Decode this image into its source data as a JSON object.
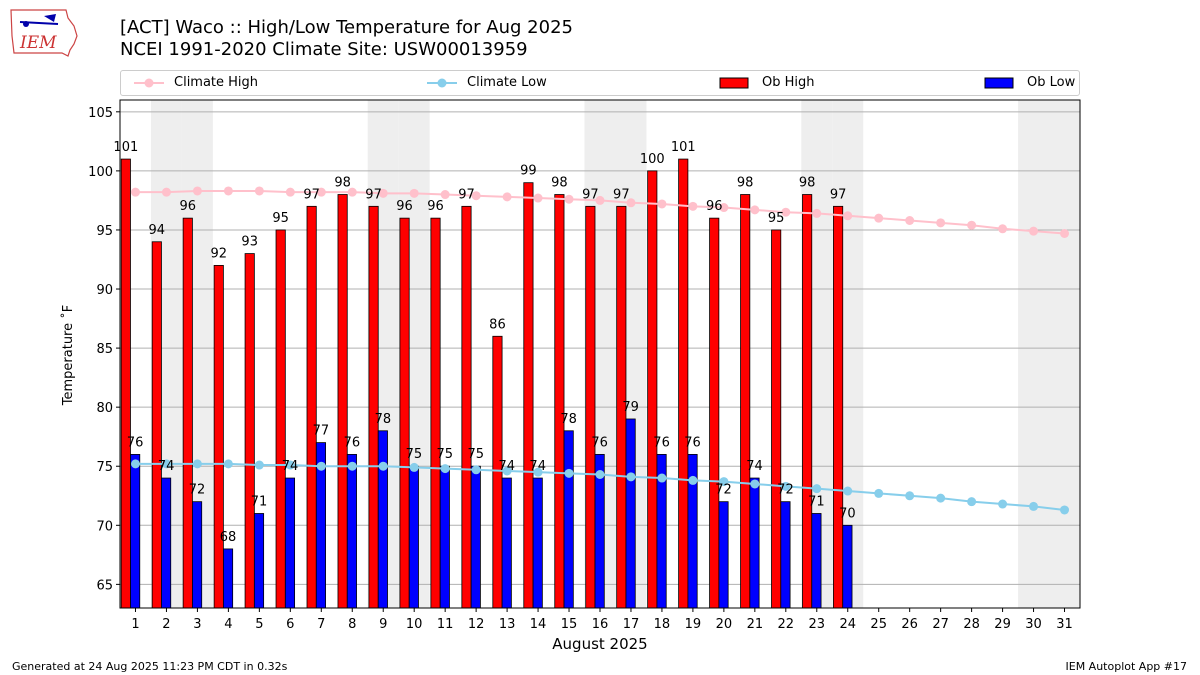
{
  "header": {
    "title_line1": "[ACT] Waco :: High/Low Temperature for Aug 2025",
    "title_line2": "NCEI 1991-2020 Climate Site: USW00013959",
    "logo_text": "IEM"
  },
  "legend": {
    "items": [
      {
        "label": "Climate High",
        "kind": "line",
        "color": "#ffc0cb"
      },
      {
        "label": "Climate Low",
        "kind": "line",
        "color": "#87ceeb"
      },
      {
        "label": "Ob High",
        "kind": "bar",
        "color": "#ff0000"
      },
      {
        "label": "Ob Low",
        "kind": "bar",
        "color": "#0000ff"
      }
    ]
  },
  "footer": {
    "left": "Generated at 24 Aug 2025 11:23 PM CDT in 0.32s",
    "right": "IEM Autoplot App #17"
  },
  "chart_data": {
    "type": "bar",
    "xlabel": "August 2025",
    "ylabel": "Temperature ˚F",
    "ylim": [
      63,
      106
    ],
    "yticks": [
      65,
      70,
      75,
      80,
      85,
      90,
      95,
      100,
      105
    ],
    "grid": true,
    "legend_position": "top",
    "categories": [
      "1",
      "2",
      "3",
      "4",
      "5",
      "6",
      "7",
      "8",
      "9",
      "10",
      "11",
      "12",
      "13",
      "14",
      "15",
      "16",
      "17",
      "18",
      "19",
      "20",
      "21",
      "22",
      "23",
      "24",
      "25",
      "26",
      "27",
      "28",
      "29",
      "30",
      "31"
    ],
    "weekend_shading_days": [
      2,
      3,
      9,
      10,
      16,
      17,
      23,
      24,
      30,
      31
    ],
    "series": [
      {
        "name": "Ob High",
        "kind": "bar",
        "color": "#ff0000",
        "values": [
          101,
          94,
          96,
          92,
          93,
          95,
          97,
          98,
          97,
          96,
          96,
          97,
          86,
          99,
          98,
          97,
          97,
          100,
          101,
          96,
          98,
          95,
          98,
          97,
          null,
          null,
          null,
          null,
          null,
          null,
          null
        ]
      },
      {
        "name": "Ob Low",
        "kind": "bar",
        "color": "#0000ff",
        "values": [
          76,
          74,
          72,
          68,
          71,
          74,
          77,
          76,
          78,
          75,
          75,
          75,
          74,
          74,
          78,
          76,
          79,
          76,
          76,
          72,
          74,
          72,
          71,
          70,
          null,
          null,
          null,
          null,
          null,
          null,
          null
        ]
      },
      {
        "name": "Climate High",
        "kind": "line",
        "color": "#ffc0cb",
        "values": [
          98.2,
          98.2,
          98.3,
          98.3,
          98.3,
          98.2,
          98.2,
          98.2,
          98.1,
          98.1,
          98.0,
          97.9,
          97.8,
          97.7,
          97.6,
          97.5,
          97.3,
          97.2,
          97.0,
          96.9,
          96.7,
          96.5,
          96.4,
          96.2,
          96.0,
          95.8,
          95.6,
          95.4,
          95.1,
          94.9,
          94.7
        ]
      },
      {
        "name": "Climate Low",
        "kind": "line",
        "color": "#87ceeb",
        "values": [
          75.2,
          75.2,
          75.2,
          75.2,
          75.1,
          75.1,
          75.0,
          75.0,
          75.0,
          74.9,
          74.8,
          74.7,
          74.6,
          74.5,
          74.4,
          74.3,
          74.1,
          74.0,
          73.8,
          73.7,
          73.5,
          73.3,
          73.1,
          72.9,
          72.7,
          72.5,
          72.3,
          72.0,
          71.8,
          71.6,
          71.3
        ]
      }
    ]
  }
}
